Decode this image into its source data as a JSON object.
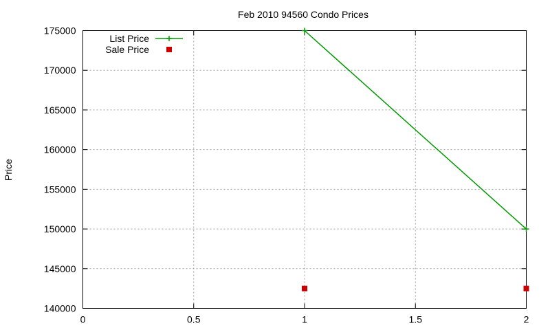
{
  "chart_data": {
    "type": "line",
    "title": "Feb 2010 94560 Condo Prices",
    "xlabel": "",
    "ylabel": "Price",
    "xlim": [
      0,
      2
    ],
    "ylim": [
      140000,
      175000
    ],
    "x_ticks": [
      "0",
      "0.5",
      "1",
      "1.5",
      "2"
    ],
    "x_tick_values": [
      0,
      0.5,
      1,
      1.5,
      2
    ],
    "y_ticks": [
      "140000",
      "145000",
      "150000",
      "155000",
      "160000",
      "165000",
      "170000",
      "175000"
    ],
    "y_tick_values": [
      140000,
      145000,
      150000,
      155000,
      160000,
      165000,
      170000,
      175000
    ],
    "grid": true,
    "legend_position": "top-left",
    "series": [
      {
        "name": "List Price",
        "style": "linespoints",
        "marker": "plus",
        "color": "#009900",
        "x": [
          1,
          2
        ],
        "values": [
          175000,
          150000
        ]
      },
      {
        "name": "Sale Price",
        "style": "points",
        "marker": "square",
        "color": "#cc0000",
        "x": [
          1,
          2
        ],
        "values": [
          142500,
          142500
        ]
      }
    ]
  }
}
